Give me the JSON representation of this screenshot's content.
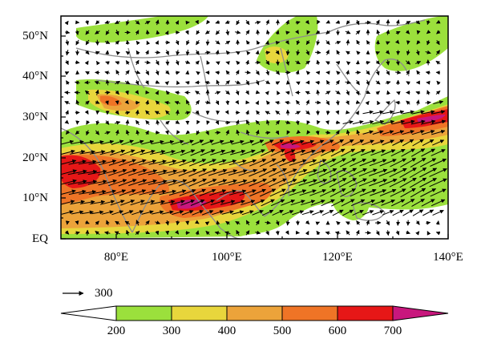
{
  "map": {
    "lon_range": [
      70,
      140
    ],
    "lat_range": [
      0,
      55
    ],
    "y_tick_labels": [
      "EQ",
      "10°N",
      "20°N",
      "30°N",
      "40°N",
      "50°N"
    ],
    "x_tick_labels": [
      "80°E",
      "100°E",
      "120°E",
      "140°E"
    ],
    "coastline_color": "#8c8c8c",
    "vector_color": "#000000"
  },
  "reference_vector": {
    "label": "300"
  },
  "colorbar": {
    "labels": [
      "200",
      "300",
      "400",
      "500",
      "600",
      "700"
    ],
    "colors": [
      "#ffffff",
      "#9be03c",
      "#e8d63c",
      "#eca33a",
      "#ef7426",
      "#e61717",
      "#c8177d"
    ]
  }
}
